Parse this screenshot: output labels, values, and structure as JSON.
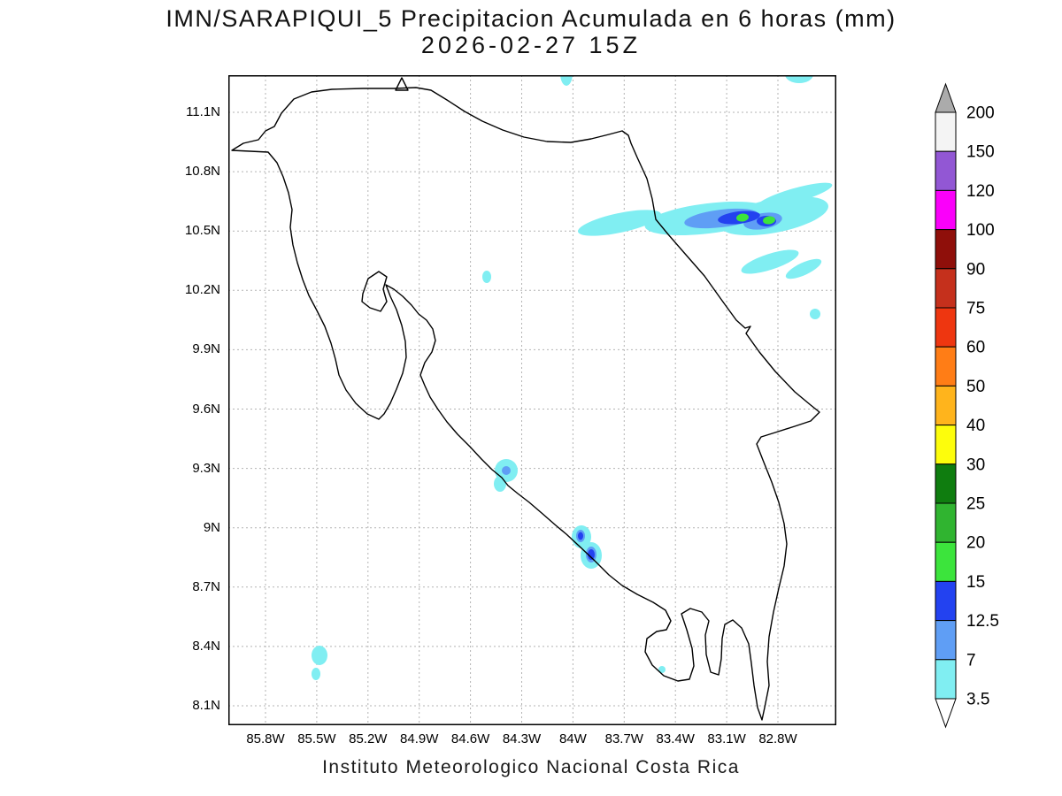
{
  "title": {
    "line1": "IMN/SARAPIQUI_5 Precipitacion Acumulada en 6 horas (mm)",
    "line2": "2026-02-27 15Z"
  },
  "footer": "Instituto Meteorologico Nacional Costa Rica",
  "map": {
    "lat_ticks": [
      "11.1N",
      "10.8N",
      "10.5N",
      "10.2N",
      "9.9N",
      "9.6N",
      "9.3N",
      "9N",
      "8.7N",
      "8.4N",
      "8.1N"
    ],
    "lon_ticks": [
      "85.8W",
      "85.5W",
      "85.2W",
      "84.9W",
      "84.6W",
      "84.3W",
      "84W",
      "83.7W",
      "83.4W",
      "83.1W",
      "82.8W"
    ]
  },
  "colorbar": {
    "labels": [
      "200",
      "150",
      "120",
      "100",
      "90",
      "75",
      "60",
      "50",
      "40",
      "30",
      "25",
      "20",
      "15",
      "12.5",
      "7",
      "3.5"
    ],
    "levels_mm": [
      200,
      150,
      120,
      100,
      90,
      75,
      60,
      50,
      40,
      30,
      25,
      20,
      15,
      12.5,
      7,
      3.5
    ],
    "segment_colors_top_to_bottom": [
      "#f4f4f4",
      "#9257d4",
      "#fa00fa",
      "#8f0f0a",
      "#c5301c",
      "#ee3610",
      "#ff7d16",
      "#ffb41c",
      "#fdfd0c",
      "#0f7d0f",
      "#30b430",
      "#3ce43c",
      "#2342f0",
      "#5f9ef5",
      "#80eef2"
    ],
    "over_color": "#ababab",
    "under_color": "#ffffff"
  }
}
